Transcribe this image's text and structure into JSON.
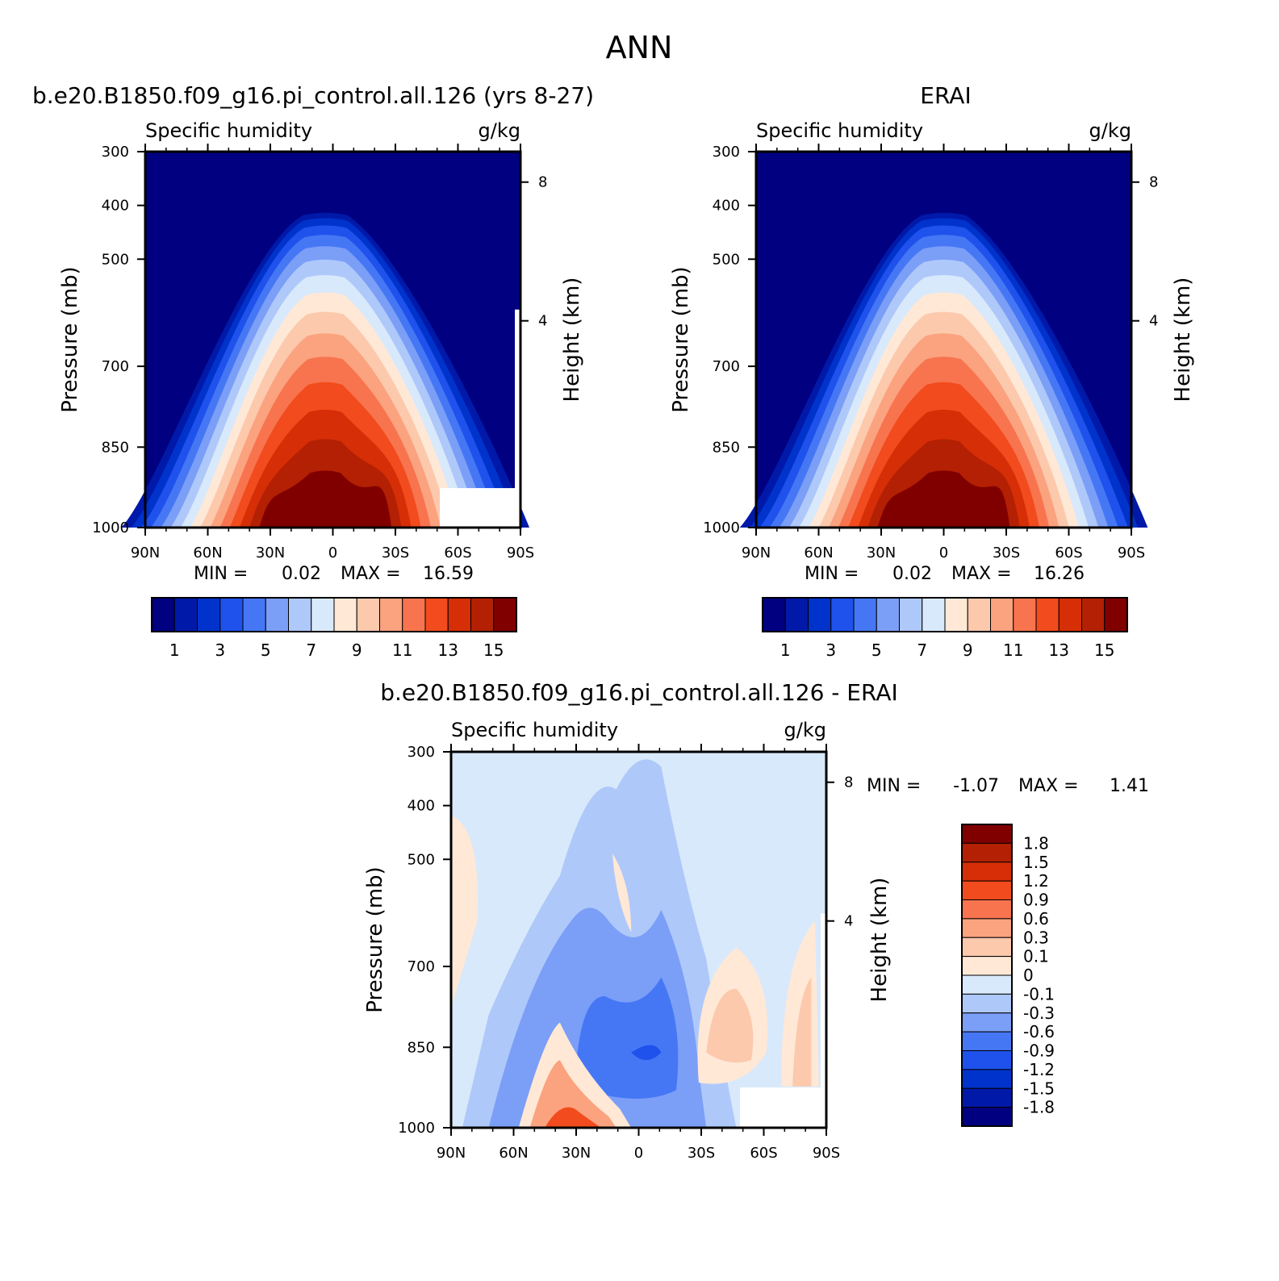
{
  "figure": {
    "title": "ANN",
    "colors": {
      "abs_levels": [
        "#000080",
        "#0019a9",
        "#0033cc",
        "#1f52ec",
        "#4577f5",
        "#7b9ef7",
        "#aec8fa",
        "#d8e9fb",
        "#ffe8d6",
        "#fcc9ad",
        "#fba27f",
        "#f7744f",
        "#f24b1d",
        "#d62e06",
        "#b32003",
        "#800000"
      ],
      "diff_levels": [
        "#000080",
        "#0019a9",
        "#0033cc",
        "#1f52ec",
        "#4577f5",
        "#7b9ef7",
        "#aec8fa",
        "#d8e9fb",
        "#ffe8d6",
        "#fcc9ad",
        "#fba27f",
        "#f7744f",
        "#f24b1d",
        "#d62e06",
        "#b32003",
        "#800000"
      ]
    }
  },
  "chart_data": [
    {
      "id": "model",
      "type": "heatmap",
      "title": "b.e20.B1850.f09_g16.pi_control.all.126 (yrs 8-27)",
      "left_label": "Specific humidity",
      "right_label": "g/kg",
      "ylabel": "Pressure (mb)",
      "y2label": "Height (km)",
      "x_ticks": [
        "90N",
        "60N",
        "30N",
        "0",
        "30S",
        "60S",
        "90S"
      ],
      "y_ticks": [
        "300",
        "400",
        "500",
        "700",
        "850",
        "1000"
      ],
      "y2_ticks": [
        "8",
        "4"
      ],
      "stats": {
        "min_label": "MIN =",
        "min": "0.02",
        "max_label": "MAX =",
        "max": "16.59"
      },
      "colorbar_labels": [
        "1",
        "3",
        "5",
        "7",
        "9",
        "11",
        "13",
        "15"
      ],
      "peak_value": 16.59
    },
    {
      "id": "obs",
      "type": "heatmap",
      "title": "ERAI",
      "left_label": "Specific humidity",
      "right_label": "g/kg",
      "ylabel": "Pressure (mb)",
      "y2label": "Height (km)",
      "x_ticks": [
        "90N",
        "60N",
        "30N",
        "0",
        "30S",
        "60S",
        "90S"
      ],
      "y_ticks": [
        "300",
        "400",
        "500",
        "700",
        "850",
        "1000"
      ],
      "y2_ticks": [
        "8",
        "4"
      ],
      "stats": {
        "min_label": "MIN =",
        "min": "0.02",
        "max_label": "MAX =",
        "max": "16.26"
      },
      "colorbar_labels": [
        "1",
        "3",
        "5",
        "7",
        "9",
        "11",
        "13",
        "15"
      ],
      "peak_value": 16.26
    },
    {
      "id": "diff",
      "type": "heatmap",
      "title": "b.e20.B1850.f09_g16.pi_control.all.126 - ERAI",
      "left_label": "Specific humidity",
      "right_label": "g/kg",
      "ylabel": "Pressure (mb)",
      "y2label": "Height (km)",
      "x_ticks": [
        "90N",
        "60N",
        "30N",
        "0",
        "30S",
        "60S",
        "90S"
      ],
      "y_ticks": [
        "300",
        "400",
        "500",
        "700",
        "850",
        "1000"
      ],
      "y2_ticks": [
        "8",
        "4"
      ],
      "stats": {
        "min_label": "MIN =",
        "min": "-1.07",
        "max_label": "MAX =",
        "max": "1.41"
      },
      "colorbar_labels": [
        "1.8",
        "1.5",
        "1.2",
        "0.9",
        "0.6",
        "0.3",
        "0.1",
        "0",
        "-0.1",
        "-0.3",
        "-0.6",
        "-0.9",
        "-1.2",
        "-1.5",
        "-1.8"
      ]
    }
  ]
}
